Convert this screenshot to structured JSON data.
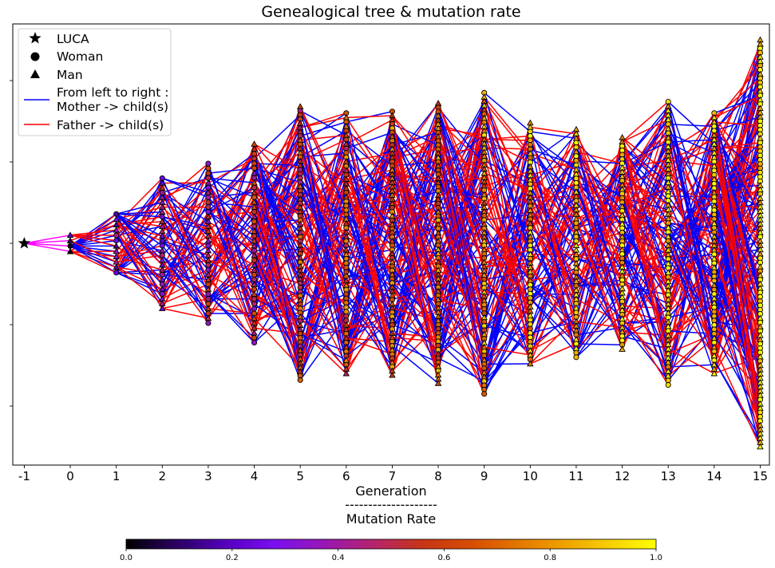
{
  "chart_data": {
    "type": "scatter",
    "title": "Genealogical tree & mutation rate",
    "xlabel": "Generation",
    "xlabel_separator": "--------------------",
    "xlabel_sub": "Mutation Rate",
    "x_ticks": [
      "-1",
      "0",
      "1",
      "2",
      "3",
      "4",
      "5",
      "6",
      "7",
      "8",
      "9",
      "10",
      "11",
      "12",
      "13",
      "14",
      "15"
    ],
    "xlim": [
      -1.25,
      15.2
    ],
    "y_ticks_visible": false,
    "legend": {
      "placement": "upper-left",
      "entries": [
        {
          "marker": "star",
          "label": "LUCA",
          "color": "#000000"
        },
        {
          "marker": "circle",
          "label": "Woman",
          "color": "#000000"
        },
        {
          "marker": "triangle",
          "label": "Man",
          "color": "#000000"
        },
        {
          "marker": "line",
          "label_lines": [
            "From left to right :",
            "Mother -> child(s)"
          ],
          "color": "#0000ff"
        },
        {
          "marker": "line",
          "label_lines": [
            "Father  -> child(s)"
          ],
          "color": "#ff0000"
        }
      ]
    },
    "generations": [
      {
        "generation": -1,
        "individuals": 1,
        "spread": 0
      },
      {
        "generation": 0,
        "individuals": 4,
        "spread": 0.1
      },
      {
        "generation": 1,
        "individuals": 12,
        "spread": 0.36
      },
      {
        "generation": 2,
        "individuals": 28,
        "spread": 0.8
      },
      {
        "generation": 3,
        "individuals": 34,
        "spread": 0.98
      },
      {
        "generation": 4,
        "individuals": 42,
        "spread": 1.22
      },
      {
        "generation": 5,
        "individuals": 66,
        "spread": 1.68
      },
      {
        "generation": 6,
        "individuals": 60,
        "spread": 1.6
      },
      {
        "generation": 7,
        "individuals": 64,
        "spread": 1.62
      },
      {
        "generation": 8,
        "individuals": 68,
        "spread": 1.72
      },
      {
        "generation": 9,
        "individuals": 72,
        "spread": 1.85
      },
      {
        "generation": 10,
        "individuals": 56,
        "spread": 1.48
      },
      {
        "generation": 11,
        "individuals": 52,
        "spread": 1.4
      },
      {
        "generation": 12,
        "individuals": 50,
        "spread": 1.3
      },
      {
        "generation": 13,
        "individuals": 64,
        "spread": 1.74
      },
      {
        "generation": 14,
        "individuals": 60,
        "spread": 1.6
      },
      {
        "generation": 15,
        "individuals": 96,
        "spread": 2.5
      }
    ],
    "mutation_rate_by_generation": [
      0.0,
      0.05,
      0.28,
      0.38,
      0.45,
      0.5,
      0.6,
      0.64,
      0.68,
      0.72,
      0.78,
      0.84,
      0.88,
      0.9,
      0.93,
      0.96,
      0.98
    ],
    "colorbar": {
      "label": "Mutation Rate",
      "range": [
        0.0,
        1.0
      ],
      "ticks": [
        "0.0",
        "0.2",
        "0.4",
        "0.6",
        "0.8",
        "1.0"
      ],
      "colormap": "gnuplot"
    },
    "colors": {
      "mother_line": "#0000ff",
      "father_line": "#ff0000",
      "luca_line": "#ff00ff",
      "marker_edge": "#000000"
    }
  }
}
